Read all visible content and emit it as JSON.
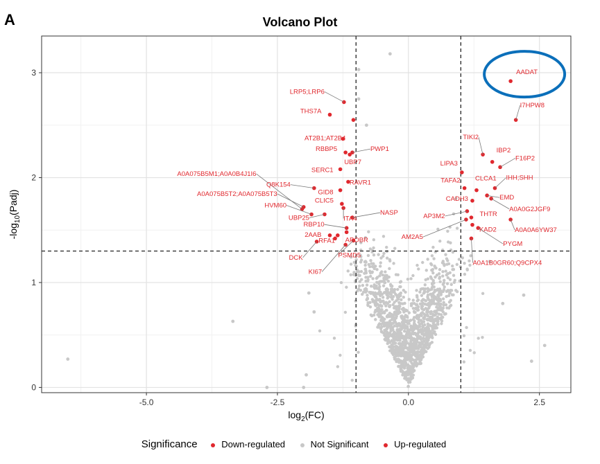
{
  "figure": {
    "panel_letter": "A"
  },
  "chart_data": {
    "type": "scatter",
    "title": "Volcano Plot",
    "xlabel_main": "log",
    "xlabel_sub": "2",
    "xlabel_tail": "(FC)",
    "ylabel_main": "-log",
    "ylabel_sub": "10",
    "ylabel_tail": "(Padj)",
    "xlim": [
      -7.0,
      3.1
    ],
    "ylim": [
      -0.05,
      3.35
    ],
    "x_ticks": [
      -5.0,
      -2.5,
      0.0,
      2.5
    ],
    "x_tick_labels": [
      "-5.0",
      "-2.5",
      "0.0",
      "2.5"
    ],
    "y_ticks": [
      0,
      1,
      2,
      3
    ],
    "y_tick_labels": [
      "0",
      "1",
      "2",
      "3"
    ],
    "thresholds": {
      "log2fc": [
        -1,
        1
      ],
      "neg_log10_padj": 1.3
    },
    "grid": true,
    "legend_position": "bottom",
    "legend": {
      "title": "Significance",
      "entries": [
        {
          "label": "Down-regulated",
          "color": "#e0282e"
        },
        {
          "label": "Not Significant",
          "color": "#c8c8c8"
        },
        {
          "label": "Up-regulated",
          "color": "#e0282e"
        }
      ]
    },
    "colors": {
      "down": "#e0282e",
      "up": "#e0282e",
      "ns": "#c8c8c8",
      "highlight_ring": "#0b6fba"
    },
    "highlight": {
      "gene": "AADAT"
    },
    "labeled_points": [
      {
        "gene": "AADAT",
        "x": 1.95,
        "y": 2.92,
        "group": "up"
      },
      {
        "gene": "I7HPW8",
        "x": 2.05,
        "y": 2.55,
        "group": "up"
      },
      {
        "gene": "TIKI2",
        "x": 1.42,
        "y": 2.22,
        "group": "up"
      },
      {
        "gene": "IBP2",
        "x": 1.6,
        "y": 2.15,
        "group": "up"
      },
      {
        "gene": "F16P2",
        "x": 1.75,
        "y": 2.1,
        "group": "up"
      },
      {
        "gene": "LIPA3",
        "x": 1.02,
        "y": 2.05,
        "group": "up"
      },
      {
        "gene": "CLCA1",
        "x": 1.3,
        "y": 1.88,
        "group": "up"
      },
      {
        "gene": "IHH;SHH",
        "x": 1.65,
        "y": 1.9,
        "group": "up"
      },
      {
        "gene": "TAFA2",
        "x": 1.07,
        "y": 1.9,
        "group": "up"
      },
      {
        "gene": "EMD",
        "x": 1.5,
        "y": 1.83,
        "group": "up"
      },
      {
        "gene": "CADH3",
        "x": 1.22,
        "y": 1.78,
        "group": "up"
      },
      {
        "gene": "A0A0G2JGF9",
        "x": 1.58,
        "y": 1.8,
        "group": "up"
      },
      {
        "gene": "AP3M2",
        "x": 1.12,
        "y": 1.68,
        "group": "up"
      },
      {
        "gene": "THTR",
        "x": 1.2,
        "y": 1.62,
        "group": "up"
      },
      {
        "gene": "A0A0A6YW37",
        "x": 1.95,
        "y": 1.6,
        "group": "up"
      },
      {
        "gene": "AM2A5",
        "x": 1.1,
        "y": 1.6,
        "group": "up"
      },
      {
        "gene": "KAD2",
        "x": 1.22,
        "y": 1.55,
        "group": "up"
      },
      {
        "gene": "PYGM",
        "x": 1.33,
        "y": 1.52,
        "group": "up"
      },
      {
        "gene": "A0A1B0GR60;Q9CPX4",
        "x": 1.2,
        "y": 1.42,
        "group": "up"
      },
      {
        "gene": "LRP5;LRP6",
        "x": -1.23,
        "y": 2.72,
        "group": "down"
      },
      {
        "gene": "THS7A",
        "x": -1.5,
        "y": 2.6,
        "group": "down"
      },
      {
        "gene": "AT2B1;AT2B4",
        "x": -1.25,
        "y": 2.37,
        "group": "down"
      },
      {
        "gene": "RBBP5",
        "x": -1.2,
        "y": 2.24,
        "group": "down"
      },
      {
        "gene": "PWP1",
        "x": -1.07,
        "y": 2.24,
        "group": "down"
      },
      {
        "gene": "UBP7",
        "x": -1.12,
        "y": 2.22,
        "group": "down"
      },
      {
        "gene": "SERC1",
        "x": -1.3,
        "y": 2.08,
        "group": "down"
      },
      {
        "gene": "A0A075B5M1;A0A0B4J1I6",
        "x": -2.03,
        "y": 1.7,
        "group": "down"
      },
      {
        "gene": "RAVR1",
        "x": -1.15,
        "y": 1.96,
        "group": "down"
      },
      {
        "gene": "Q8K154",
        "x": -1.8,
        "y": 1.9,
        "group": "down"
      },
      {
        "gene": "GID8",
        "x": -1.3,
        "y": 1.88,
        "group": "down"
      },
      {
        "gene": "A0A075B5T2;A0A075B5T3",
        "x": -2.0,
        "y": 1.72,
        "group": "down"
      },
      {
        "gene": "CLIC5",
        "x": -1.27,
        "y": 1.75,
        "group": "down"
      },
      {
        "gene": "ITA4",
        "x": -1.24,
        "y": 1.71,
        "group": "down"
      },
      {
        "gene": "NASP",
        "x": -1.07,
        "y": 1.62,
        "group": "down"
      },
      {
        "gene": "HVM60",
        "x": -1.85,
        "y": 1.65,
        "group": "down"
      },
      {
        "gene": "UBP25",
        "x": -1.6,
        "y": 1.65,
        "group": "down"
      },
      {
        "gene": "RBP10",
        "x": -1.18,
        "y": 1.52,
        "group": "down"
      },
      {
        "gene": "APOBR",
        "x": -1.18,
        "y": 1.48,
        "group": "down"
      },
      {
        "gene": "2AAB",
        "x": -1.5,
        "y": 1.45,
        "group": "down"
      },
      {
        "gene": "RFA1",
        "x": -1.4,
        "y": 1.42,
        "group": "down"
      },
      {
        "gene": "PSMD5",
        "x": -1.05,
        "y": 1.4,
        "group": "down"
      },
      {
        "gene": "DCK",
        "x": -1.75,
        "y": 1.39,
        "group": "down"
      },
      {
        "gene": "KI67",
        "x": -1.2,
        "y": 1.36,
        "group": "down"
      }
    ],
    "unlabeled_significant_points": [
      {
        "x": -1.05,
        "y": 2.55,
        "group": "down"
      },
      {
        "x": -1.35,
        "y": 1.45,
        "group": "down"
      }
    ],
    "not_significant_outliers": [
      {
        "x": -6.5,
        "y": 0.27
      },
      {
        "x": -3.35,
        "y": 0.63
      },
      {
        "x": -2.7,
        "y": 0.0
      },
      {
        "x": -2.0,
        "y": 0.0
      },
      {
        "x": -0.35,
        "y": 3.18
      },
      {
        "x": -0.95,
        "y": 3.03
      },
      {
        "x": -0.95,
        "y": 2.75
      },
      {
        "x": -0.8,
        "y": 2.5
      },
      {
        "x": 2.6,
        "y": 0.4
      },
      {
        "x": 2.35,
        "y": 0.25
      },
      {
        "x": 2.2,
        "y": 0.88
      },
      {
        "x": -1.9,
        "y": 0.9
      },
      {
        "x": -1.95,
        "y": 0.12
      },
      {
        "x": 1.55,
        "y": 1.2
      },
      {
        "x": 1.8,
        "y": 0.8
      },
      {
        "x": -1.8,
        "y": 0.72
      }
    ],
    "not_significant_cloud": {
      "count": 1400,
      "description_x_range": [
        -1.6,
        1.6
      ],
      "description_y_range": [
        0,
        1.3
      ]
    }
  }
}
